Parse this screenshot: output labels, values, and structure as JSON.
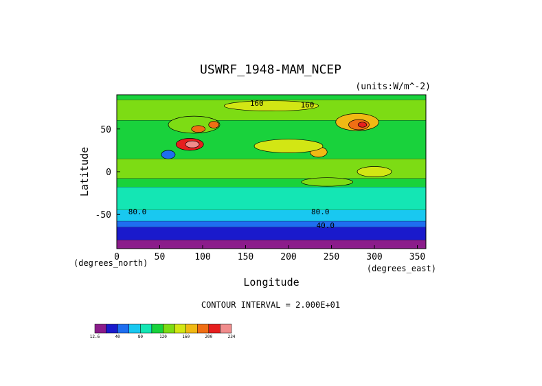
{
  "chart_data": {
    "type": "heatmap",
    "title": "USWRF_1948-MAM_NCEP",
    "units_label": "(units:W/m^-2)",
    "xlabel": "Longitude",
    "ylabel": "Latitude",
    "x_units_note": "(degrees_east)",
    "y_units_note": "(degrees_north)",
    "xlim": [
      0,
      360
    ],
    "ylim": [
      -90,
      90
    ],
    "x_ticks": [
      0,
      50,
      100,
      150,
      200,
      250,
      300,
      350
    ],
    "y_ticks": [
      -50,
      0,
      50
    ],
    "contour_interval_text": "CONTOUR INTERVAL = 2.000E+01",
    "contour_labels": [
      {
        "text": "160",
        "lon": 163,
        "lat": 77
      },
      {
        "text": "160",
        "lon": 222,
        "lat": 75
      },
      {
        "text": "80.0",
        "lon": 24,
        "lat": -50
      },
      {
        "text": "80.0",
        "lon": 237,
        "lat": -50
      },
      {
        "text": "40.0",
        "lon": 243,
        "lat": -66
      }
    ],
    "colorbar": {
      "tick_labels": [
        "12.6",
        "40",
        "80",
        "120",
        "160",
        "200",
        "234"
      ],
      "colors": [
        "#8b1c8b",
        "#1a1acc",
        "#1e6ef0",
        "#19c8f0",
        "#14e6b4",
        "#19d23c",
        "#7ddc14",
        "#d2e614",
        "#f0b914",
        "#f06e14",
        "#e61e1e",
        "#f08c8c"
      ]
    },
    "zonal_bands": [
      {
        "lat_from": 90,
        "lat_to": 84,
        "color": "#19d23c"
      },
      {
        "lat_from": 84,
        "lat_to": 60,
        "color": "#7ddc14"
      },
      {
        "lat_from": 60,
        "lat_to": 15,
        "color": "#19d23c"
      },
      {
        "lat_from": 15,
        "lat_to": -8,
        "color": "#7ddc14"
      },
      {
        "lat_from": -8,
        "lat_to": -18,
        "color": "#19d23c"
      },
      {
        "lat_from": -18,
        "lat_to": -45,
        "color": "#14e6b4"
      },
      {
        "lat_from": -45,
        "lat_to": -58,
        "color": "#19c8f0"
      },
      {
        "lat_from": -58,
        "lat_to": -65,
        "color": "#1e6ef0"
      },
      {
        "lat_from": -65,
        "lat_to": -80,
        "color": "#1a1acc"
      },
      {
        "lat_from": -80,
        "lat_to": -90,
        "color": "#8b1c8b"
      }
    ],
    "features": [
      {
        "lon": 180,
        "lat": 77,
        "rx": 55,
        "ry": 6,
        "color": "#d2e614"
      },
      {
        "lon": 90,
        "lat": 55,
        "rx": 30,
        "ry": 10,
        "color": "#7ddc14"
      },
      {
        "lon": 95,
        "lat": 50,
        "rx": 8,
        "ry": 4,
        "color": "#f06e14"
      },
      {
        "lon": 113,
        "lat": 55,
        "rx": 6,
        "ry": 4,
        "color": "#f06e14"
      },
      {
        "lon": 280,
        "lat": 58,
        "rx": 25,
        "ry": 10,
        "color": "#f0b914"
      },
      {
        "lon": 282,
        "lat": 55,
        "rx": 12,
        "ry": 6,
        "color": "#f06e14"
      },
      {
        "lon": 286,
        "lat": 55,
        "rx": 5,
        "ry": 3,
        "color": "#e61e1e"
      },
      {
        "lon": 85,
        "lat": 32,
        "rx": 16,
        "ry": 7,
        "color": "#e61e1e"
      },
      {
        "lon": 88,
        "lat": 32,
        "rx": 8,
        "ry": 4,
        "color": "#f08c8c"
      },
      {
        "lon": 60,
        "lat": 20,
        "rx": 8,
        "ry": 5,
        "color": "#1e6ef0"
      },
      {
        "lon": 235,
        "lat": 23,
        "rx": 10,
        "ry": 6,
        "color": "#f0b914"
      },
      {
        "lon": 200,
        "lat": 30,
        "rx": 40,
        "ry": 8,
        "color": "#d2e614"
      },
      {
        "lon": 300,
        "lat": 0,
        "rx": 20,
        "ry": 6,
        "color": "#d2e614"
      },
      {
        "lon": 245,
        "lat": -12,
        "rx": 30,
        "ry": 5,
        "color": "#7ddc14"
      }
    ]
  }
}
